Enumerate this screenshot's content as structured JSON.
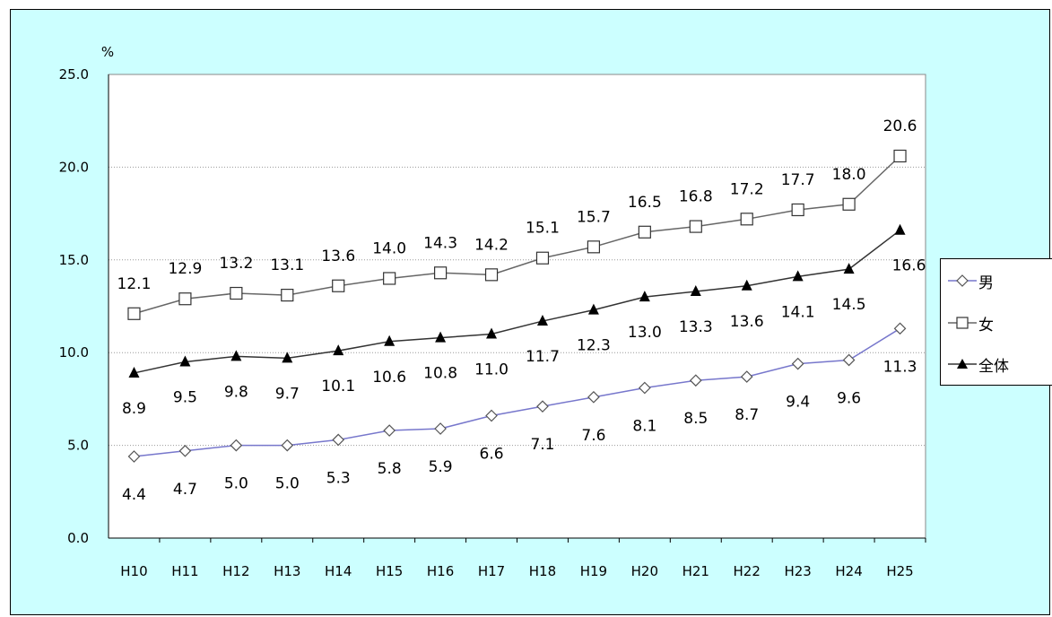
{
  "chart_data": {
    "type": "line",
    "unit": "%",
    "categories": [
      "H10",
      "H11",
      "H12",
      "H13",
      "H14",
      "H15",
      "H16",
      "H17",
      "H18",
      "H19",
      "H20",
      "H21",
      "H22",
      "H23",
      "H24",
      "H25"
    ],
    "ylim": [
      0,
      25
    ],
    "yticks": [
      "0.0",
      "5.0",
      "10.0",
      "15.0",
      "20.0",
      "25.0"
    ],
    "grid": true,
    "legend_position": "right",
    "series": [
      {
        "name": "男",
        "marker": "diamond-open",
        "color": "#7777cc",
        "values": [
          4.4,
          4.7,
          5.0,
          5.0,
          5.3,
          5.8,
          5.9,
          6.6,
          7.1,
          7.6,
          8.1,
          8.5,
          8.7,
          9.4,
          9.6,
          11.3
        ]
      },
      {
        "name": "女",
        "marker": "square-open",
        "color": "#666666",
        "values": [
          12.1,
          12.9,
          13.2,
          13.1,
          13.6,
          14.0,
          14.3,
          14.2,
          15.1,
          15.7,
          16.5,
          16.8,
          17.2,
          17.7,
          18.0,
          20.6
        ]
      },
      {
        "name": "全体",
        "marker": "triangle-filled",
        "color": "#333333",
        "values": [
          8.9,
          9.5,
          9.8,
          9.7,
          10.1,
          10.6,
          10.8,
          11.0,
          11.7,
          12.3,
          13.0,
          13.3,
          13.6,
          14.1,
          14.5,
          16.6
        ]
      }
    ]
  },
  "colors": {
    "background": "#ccffff",
    "plot": "#ffffff",
    "grid": "#999999"
  }
}
